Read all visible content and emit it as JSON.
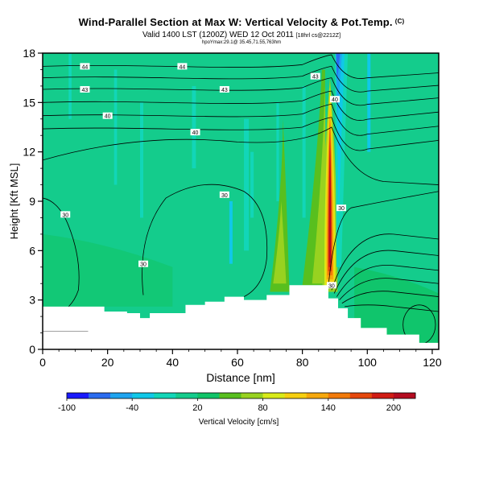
{
  "header": {
    "title": "Wind-Parallel Section at Max W: Vertical Velocity & Pot.Temp.",
    "title_mark": "(C)",
    "valid_line": "Valid 1400 LST (1200Z) WED 12 Oct 2011",
    "valid_suffix": "[18hrl cs@2212Z]",
    "sub_line": "hpoYmax:29.1@ 35.45,71.55,763hm"
  },
  "chart_data": {
    "type": "heatmap",
    "xlabel": "Distance [nm]",
    "ylabel": "Height [Kft MSL]",
    "xlim": [
      0,
      122
    ],
    "ylim": [
      0,
      18
    ],
    "x_ticks": [
      0,
      20,
      40,
      60,
      80,
      100,
      120
    ],
    "y_ticks": [
      0,
      3,
      6,
      9,
      12,
      15,
      18
    ],
    "grid": false,
    "colorbar": {
      "label": "Vertical Velocity [cm/s]",
      "tick_labels": [
        -100,
        -40,
        20,
        80,
        140,
        200
      ],
      "levels": [
        -100,
        -80,
        -60,
        -40,
        -20,
        0,
        20,
        40,
        60,
        80,
        100,
        120,
        140,
        160,
        180,
        200,
        220
      ],
      "colors": [
        "#1a1aff",
        "#2a6cf0",
        "#1ea4f0",
        "#10c8e8",
        "#12d6b8",
        "#14cc8c",
        "#10c468",
        "#58bf1e",
        "#98d220",
        "#d8ea18",
        "#f6cf10",
        "#f6a80c",
        "#f27a0a",
        "#e5480c",
        "#d01c14",
        "#b40c20"
      ]
    },
    "terrain_kft": [
      {
        "x": 0,
        "y": 2.6
      },
      {
        "x": 17,
        "y": 2.6
      },
      {
        "x": 19,
        "y": 2.3
      },
      {
        "x": 26,
        "y": 2.2
      },
      {
        "x": 30,
        "y": 1.9
      },
      {
        "x": 33,
        "y": 2.2
      },
      {
        "x": 44,
        "y": 2.7
      },
      {
        "x": 50,
        "y": 2.9
      },
      {
        "x": 56,
        "y": 3.2
      },
      {
        "x": 62,
        "y": 3.0
      },
      {
        "x": 69,
        "y": 3.3
      },
      {
        "x": 76,
        "y": 3.9
      },
      {
        "x": 86,
        "y": 3.9
      },
      {
        "x": 88,
        "y": 3.1
      },
      {
        "x": 91,
        "y": 2.5
      },
      {
        "x": 94,
        "y": 1.9
      },
      {
        "x": 98,
        "y": 1.3
      },
      {
        "x": 106,
        "y": 0.9
      },
      {
        "x": 116,
        "y": 0.4
      },
      {
        "x": 122,
        "y": 0.4
      }
    ],
    "updraft": {
      "x": 88.5,
      "bottom_kft": 3.5,
      "top_kft": 16.5,
      "peak_cm_s": 200
    },
    "theta_labels": [
      {
        "text": "44",
        "x": 13,
        "y": 17.2
      },
      {
        "text": "44",
        "x": 43,
        "y": 17.2
      },
      {
        "text": "43",
        "x": 13,
        "y": 15.8
      },
      {
        "text": "43",
        "x": 56,
        "y": 15.8
      },
      {
        "text": "43",
        "x": 84,
        "y": 16.6
      },
      {
        "text": "40",
        "x": 20,
        "y": 14.2
      },
      {
        "text": "40",
        "x": 47,
        "y": 13.2
      },
      {
        "text": "40",
        "x": 90,
        "y": 15.2
      },
      {
        "text": "30",
        "x": 56,
        "y": 9.4
      },
      {
        "text": "30",
        "x": 7,
        "y": 8.2
      },
      {
        "text": "30",
        "x": 31,
        "y": 5.2
      },
      {
        "text": "30",
        "x": 92,
        "y": 8.6
      },
      {
        "text": "30",
        "x": 89,
        "y": 3.9
      }
    ]
  },
  "colorbar_label": "Vertical Velocity [cm/s]"
}
